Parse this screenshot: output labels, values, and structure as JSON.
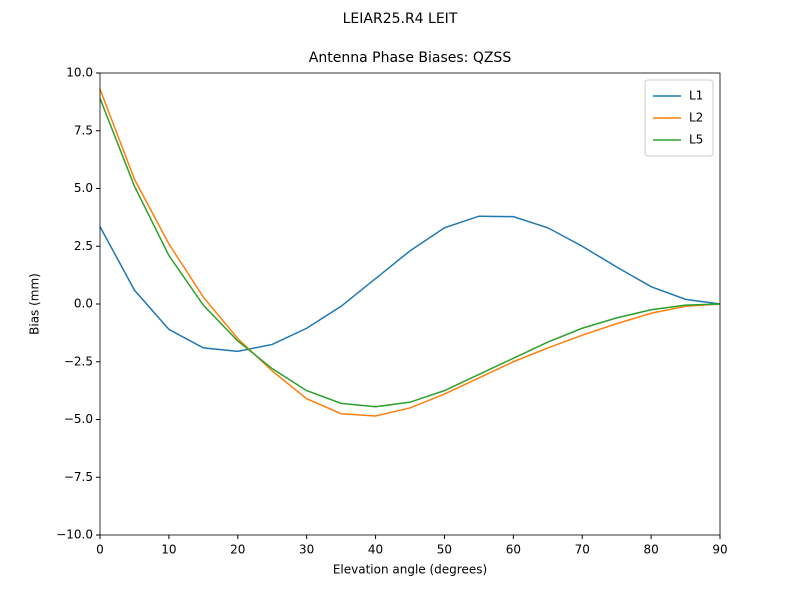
{
  "chart_data": {
    "type": "line",
    "suptitle": "LEIAR25.R4      LEIT",
    "title": "Antenna Phase Biases: QZSS",
    "xlabel": "Elevation angle (degrees)",
    "ylabel": "Bias (mm)",
    "x": [
      0,
      5,
      10,
      15,
      20,
      25,
      30,
      35,
      40,
      45,
      50,
      55,
      60,
      65,
      70,
      75,
      80,
      85,
      90
    ],
    "series": [
      {
        "name": "L1",
        "color": "#1f77b4",
        "values": [
          3.35,
          0.6,
          -1.1,
          -1.9,
          -2.05,
          -1.75,
          -1.05,
          -0.1,
          1.1,
          2.3,
          3.3,
          3.8,
          3.78,
          3.3,
          2.5,
          1.6,
          0.75,
          0.2,
          0.0
        ]
      },
      {
        "name": "L2",
        "color": "#ff7f0e",
        "values": [
          9.3,
          5.4,
          2.6,
          0.3,
          -1.5,
          -2.9,
          -4.1,
          -4.75,
          -4.85,
          -4.5,
          -3.9,
          -3.2,
          -2.5,
          -1.9,
          -1.35,
          -0.85,
          -0.4,
          -0.1,
          0.0
        ]
      },
      {
        "name": "L5",
        "color": "#2ca02c",
        "values": [
          8.9,
          5.1,
          2.1,
          -0.05,
          -1.6,
          -2.8,
          -3.75,
          -4.3,
          -4.45,
          -4.25,
          -3.75,
          -3.05,
          -2.35,
          -1.65,
          -1.05,
          -0.6,
          -0.25,
          -0.05,
          0.0
        ]
      }
    ],
    "xlim": [
      0,
      90
    ],
    "xticks": [
      0,
      10,
      20,
      30,
      40,
      50,
      60,
      70,
      80,
      90
    ],
    "ylim": [
      -10,
      10
    ],
    "yticks": [
      {
        "value": -10,
        "label": "−10.0"
      },
      {
        "value": -7.5,
        "label": "−7.5"
      },
      {
        "value": -5,
        "label": "−5.0"
      },
      {
        "value": -2.5,
        "label": "−2.5"
      },
      {
        "value": 0,
        "label": "0.0"
      },
      {
        "value": 2.5,
        "label": "2.5"
      },
      {
        "value": 5,
        "label": "5.0"
      },
      {
        "value": 7.5,
        "label": "7.5"
      },
      {
        "value": 10,
        "label": "10.0"
      }
    ],
    "legend": "upper right"
  }
}
